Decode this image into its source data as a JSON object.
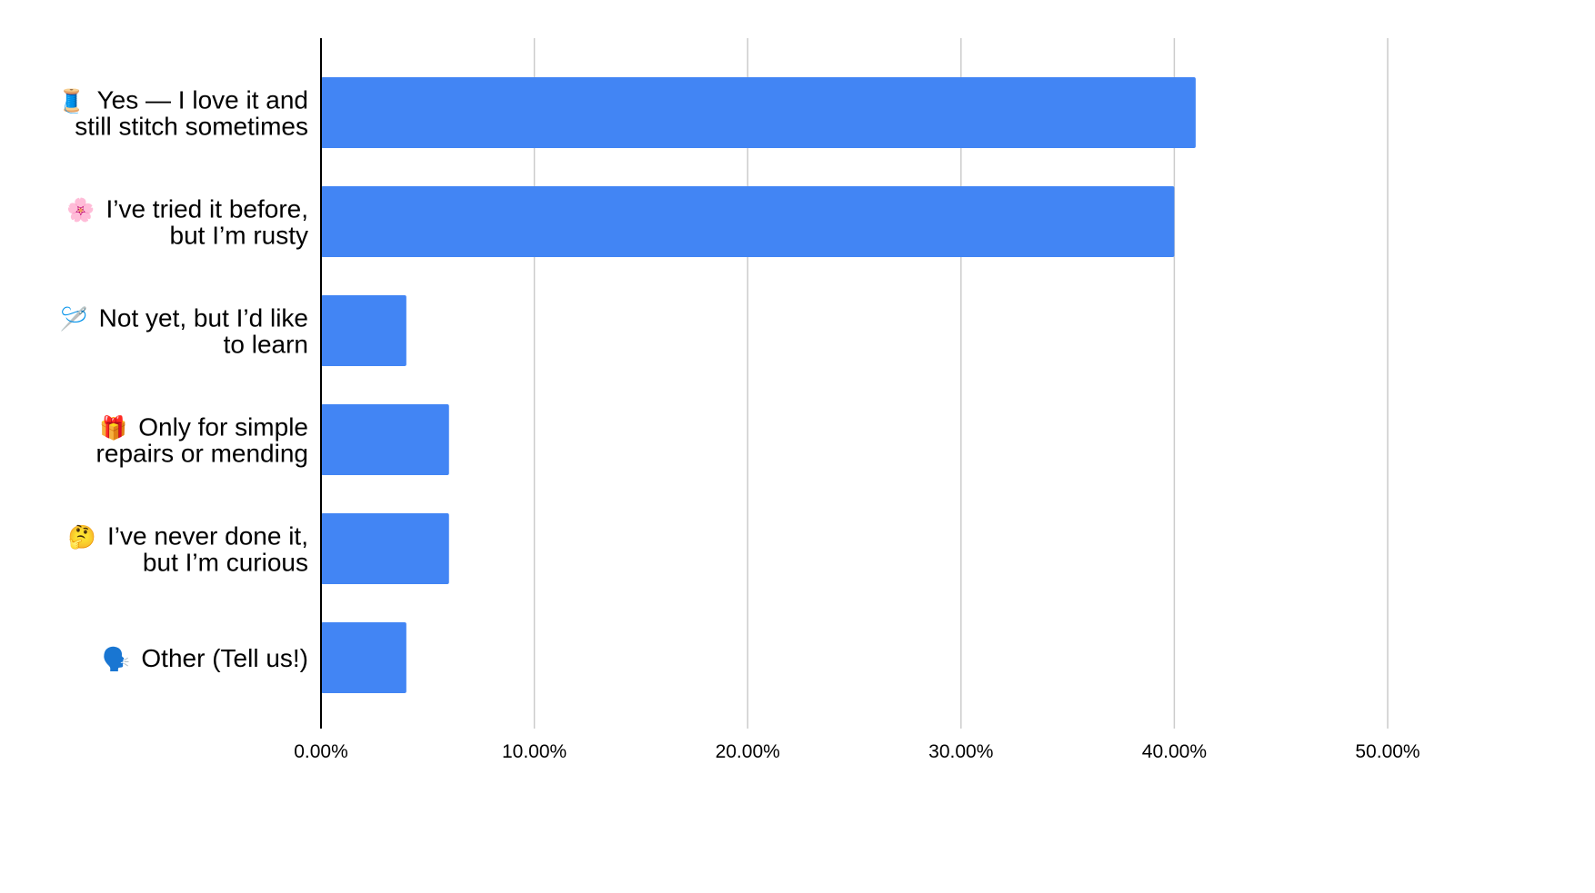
{
  "chart_data": {
    "type": "bar",
    "orientation": "horizontal",
    "categories": [
      {
        "emoji": "🧵",
        "lines": [
          "Yes — I love it and",
          "still stitch sometimes"
        ]
      },
      {
        "emoji": "🌸",
        "lines": [
          "I’ve tried it before,",
          "but I’m rusty"
        ]
      },
      {
        "emoji": "🪡",
        "lines": [
          "Not yet, but I’d like",
          "to learn"
        ]
      },
      {
        "emoji": "🎁",
        "lines": [
          "Only for simple",
          "repairs or mending"
        ]
      },
      {
        "emoji": "🤔",
        "lines": [
          "I’ve never done it,",
          "but I’m curious"
        ]
      },
      {
        "emoji": "🗣️",
        "lines": [
          "Other (Tell us!)"
        ]
      }
    ],
    "values": [
      0.41,
      0.4,
      0.04,
      0.06,
      0.06,
      0.04
    ],
    "xlim": [
      0,
      0.5
    ],
    "xticks": [
      0,
      0.1,
      0.2,
      0.3,
      0.4,
      0.5
    ],
    "xtick_labels": [
      "0.00%",
      "10.00%",
      "20.00%",
      "30.00%",
      "40.00%",
      "50.00%"
    ],
    "title": "",
    "xlabel": "",
    "ylabel": "",
    "grid": true,
    "legend": "none",
    "colors": {
      "bar": "#4285f4",
      "grid": "#cccccc",
      "axis": "#000000",
      "text": "#000000"
    }
  }
}
